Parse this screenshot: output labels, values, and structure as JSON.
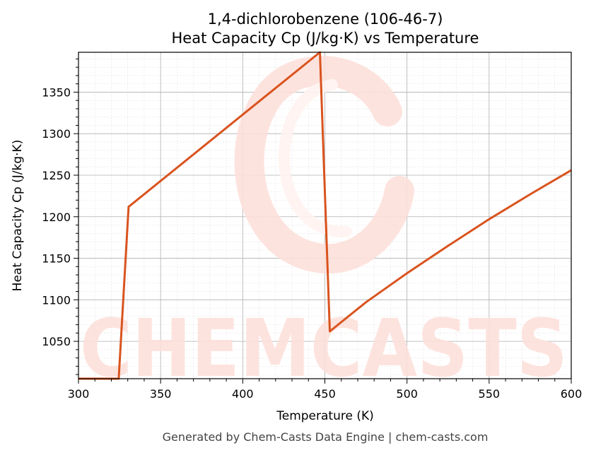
{
  "chart_data": {
    "type": "line",
    "title_line1": "1,4-dichlorobenzene (106-46-7)",
    "title_line2": "Heat Capacity Cp (J/kg·K) vs Temperature",
    "xlabel": "Temperature (K)",
    "ylabel": "Heat Capacity Cp (J/kg·K)",
    "xlim": [
      300,
      600
    ],
    "ylim": [
      1005,
      1398
    ],
    "xticks": [
      300,
      350,
      400,
      450,
      500,
      550,
      600
    ],
    "yticks": [
      1050,
      1100,
      1150,
      1200,
      1250,
      1300,
      1350
    ],
    "grid": true,
    "series": [
      {
        "color": "#d9531e",
        "x": [
          300,
          324.5,
          330.5,
          447,
          453,
          475,
          500,
          525,
          550,
          575,
          600
        ],
        "y": [
          1005,
          1005,
          1212,
          1398,
          1062,
          1097,
          1132,
          1165,
          1197,
          1227,
          1256
        ]
      }
    ]
  },
  "watermark": {
    "text": "CHEMCASTS",
    "color": "#fde0db"
  },
  "footer": "Generated by Chem-Casts Data Engine | chem-casts.com"
}
